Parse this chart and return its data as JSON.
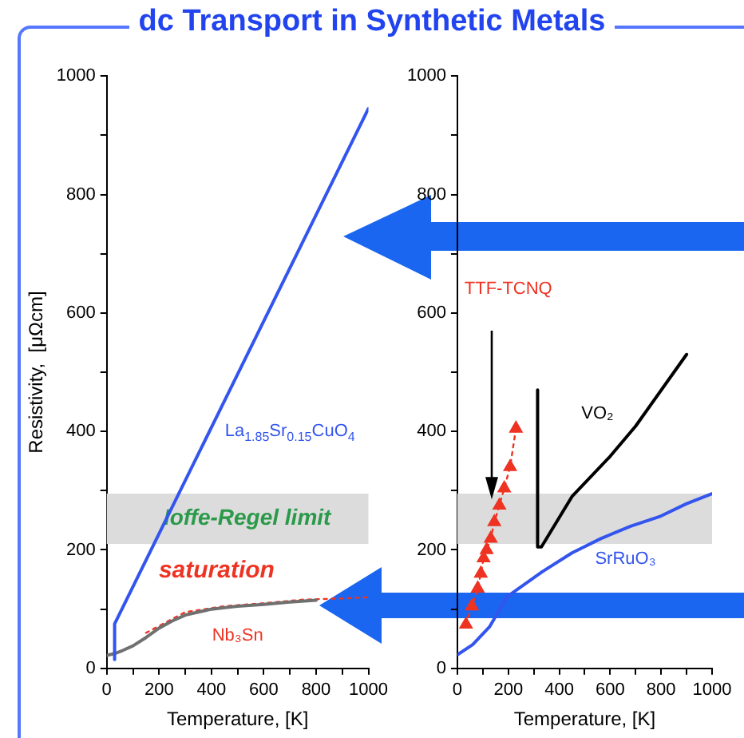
{
  "chart_data": [
    {
      "type": "line",
      "title": "dc Transport in Synthetic Metals",
      "xlabel": "Temperature, [K]",
      "ylabel": "Resistivity,  [μΩcm]",
      "xlim": [
        0,
        1000
      ],
      "ylim": [
        0,
        1000
      ],
      "xticks": [
        0,
        {
          "value": 100,
          "label": null
        },
        200,
        {
          "value": 300,
          "label": null
        },
        400,
        {
          "value": 500,
          "label": null
        },
        600,
        {
          "value": 700,
          "label": null
        },
        800,
        {
          "value": 900,
          "label": null
        },
        1000
      ],
      "yticks": [
        0,
        {
          "value": 100,
          "label": null
        },
        200,
        {
          "value": 300,
          "label": null
        },
        400,
        {
          "value": 500,
          "label": null
        },
        600,
        {
          "value": 700,
          "label": null
        },
        800,
        {
          "value": 900,
          "label": null
        },
        1000
      ],
      "series": [
        {
          "name": "La$_{1.85}$Sr$_{0.15}$CuO$_{4}$",
          "color": "#3355ee",
          "x": [
            30,
            30,
            1000
          ],
          "values": [
            15,
            75,
            945
          ],
          "marker": "none",
          "line_style": "solid"
        },
        {
          "color": "#707070",
          "x": [
            0,
            30,
            60,
            100,
            150,
            200,
            250,
            300,
            400,
            500,
            600,
            700,
            800
          ],
          "values": [
            22,
            25,
            30,
            38,
            52,
            68,
            80,
            90,
            100,
            105,
            108,
            112,
            115
          ],
          "marker": "none",
          "line_style": "solid"
        },
        {
          "name": "Nb₃Sn",
          "color": "#ee3322",
          "x": [
            150,
            300,
            450,
            600,
            750,
            900,
            1000
          ],
          "values": [
            60,
            95,
            105,
            110,
            116,
            118,
            120
          ],
          "marker": "none",
          "line_style": "dotted"
        }
      ],
      "bands": [
        {
          "axis": "y",
          "from": 210,
          "to": 295,
          "label": "Ioffe-Regel limit",
          "color": "#dcdcdc"
        }
      ],
      "annotations": [
        "saturation"
      ]
    },
    {
      "type": "line",
      "xlabel": "Temperature, [K]",
      "xlim": [
        0,
        1000
      ],
      "ylim": [
        0,
        1000
      ],
      "xticks": [
        0,
        {
          "value": 100,
          "label": null
        },
        200,
        {
          "value": 300,
          "label": null
        },
        400,
        {
          "value": 500,
          "label": null
        },
        600,
        {
          "value": 700,
          "label": null
        },
        800,
        {
          "value": 900,
          "label": null
        },
        1000
      ],
      "yticks": [
        0,
        {
          "value": 100,
          "label": null
        },
        200,
        {
          "value": 300,
          "label": null
        },
        400,
        {
          "value": 500,
          "label": null
        },
        600,
        {
          "value": 700,
          "label": null
        },
        800,
        {
          "value": 900,
          "label": null
        },
        1000
      ],
      "series": [
        {
          "name": "TTF-TCNQ",
          "color": "#ee3322",
          "x": [
            34,
            57,
            80,
            92,
            103,
            115,
            131,
            145,
            165,
            184,
            207,
            230
          ],
          "values": [
            74,
            105,
            135,
            160,
            186,
            200,
            219,
            247,
            275,
            304,
            340,
            405
          ],
          "marker": "triangle",
          "line_style": "dotted"
        },
        {
          "name": "VO₂",
          "color": "#000000",
          "x": [
            315,
            315,
            330,
            450,
            600,
            700,
            900
          ],
          "values": [
            470,
            205,
            205,
            290,
            358,
            409,
            530
          ],
          "marker": "none",
          "line_style": "solid"
        },
        {
          "name": "SrRuO₃",
          "color": "#3355ee",
          "x": [
            0,
            60,
            126,
            195,
            333,
            450,
            563,
            680,
            793,
            900,
            1000
          ],
          "values": [
            23,
            40,
            70,
            121,
            163,
            195,
            219,
            240,
            256,
            278,
            295
          ],
          "marker": "none",
          "line_style": "solid"
        }
      ],
      "bands": [
        {
          "axis": "y",
          "from": 210,
          "to": 295,
          "color": "#dcdcdc"
        }
      ]
    }
  ]
}
